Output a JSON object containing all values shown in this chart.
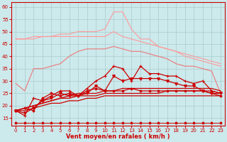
{
  "background_color": "#cce9ec",
  "grid_color": "#aacccc",
  "line_color_dark_red": "#cc0000",
  "line_color_light_pink": "#ff9999",
  "line_color_med_pink": "#ee7777",
  "xlabel": "Vent moyen/en rafales ( km/h )",
  "xlim": [
    -0.5,
    23.5
  ],
  "ylim": [
    12,
    62
  ],
  "yticks": [
    15,
    20,
    25,
    30,
    35,
    40,
    45,
    50,
    55,
    60
  ],
  "xticks": [
    0,
    1,
    2,
    3,
    4,
    5,
    6,
    7,
    8,
    9,
    10,
    11,
    12,
    13,
    14,
    15,
    16,
    17,
    18,
    19,
    20,
    21,
    22,
    23
  ],
  "x": [
    0,
    1,
    2,
    3,
    4,
    5,
    6,
    7,
    8,
    9,
    10,
    11,
    12,
    13,
    14,
    15,
    16,
    17,
    18,
    19,
    20,
    21,
    22,
    23
  ],
  "s_pink_max": [
    47,
    47,
    47,
    48,
    48,
    49,
    49,
    50,
    50,
    50,
    51,
    58,
    58,
    51,
    47,
    47,
    44,
    43,
    42,
    40,
    39,
    38,
    37,
    36
  ],
  "s_pink_upper": [
    47,
    47,
    48,
    48,
    48,
    48,
    48,
    48,
    48,
    48,
    48,
    50,
    48,
    47,
    46,
    45,
    44,
    43,
    42,
    41,
    40,
    39,
    38,
    37
  ],
  "s_pink_lower": [
    29,
    26,
    35,
    35,
    36,
    37,
    40,
    42,
    43,
    43,
    43,
    44,
    43,
    42,
    42,
    41,
    40,
    39,
    37,
    36,
    36,
    35,
    34,
    25
  ],
  "s_dark_spike": [
    18,
    16,
    23,
    22,
    24,
    26,
    26,
    24,
    27,
    30,
    32,
    36,
    35,
    30,
    36,
    33,
    33,
    32,
    32,
    30,
    29,
    30,
    26,
    25
  ],
  "s_dark_markers": [
    18,
    17,
    19,
    22,
    23,
    25,
    24,
    24,
    25,
    28,
    26,
    32,
    30,
    31,
    31,
    31,
    31,
    30,
    29,
    28,
    28,
    26,
    25,
    25
  ],
  "s_dark_smooth": [
    18,
    19,
    18,
    23,
    25,
    24,
    25,
    24,
    26,
    27,
    26,
    26,
    26,
    27,
    26,
    26,
    26,
    26,
    26,
    26,
    26,
    26,
    25,
    24
  ],
  "s_trend_upper": [
    18,
    19,
    20,
    21,
    22,
    23,
    23,
    24,
    24,
    24,
    25,
    25,
    25,
    25,
    25,
    25,
    25,
    26,
    26,
    26,
    26,
    26,
    26,
    25
  ],
  "s_trend_lower": [
    18,
    18,
    19,
    20,
    21,
    21,
    22,
    22,
    23,
    23,
    24,
    24,
    24,
    24,
    24,
    24,
    24,
    24,
    24,
    24,
    24,
    24,
    24,
    24
  ],
  "s_trend_diagonal": [
    18,
    19,
    20,
    21,
    22,
    23,
    24,
    25,
    25,
    25,
    26,
    26,
    27,
    27,
    27,
    27,
    27,
    27,
    27,
    27,
    27,
    27,
    27,
    26
  ],
  "s_bottom_star": [
    13,
    13,
    13,
    13,
    13,
    13,
    13,
    13,
    13,
    13,
    13,
    13,
    13,
    13,
    13,
    13,
    13,
    13,
    13,
    13,
    13,
    13,
    13,
    13
  ]
}
